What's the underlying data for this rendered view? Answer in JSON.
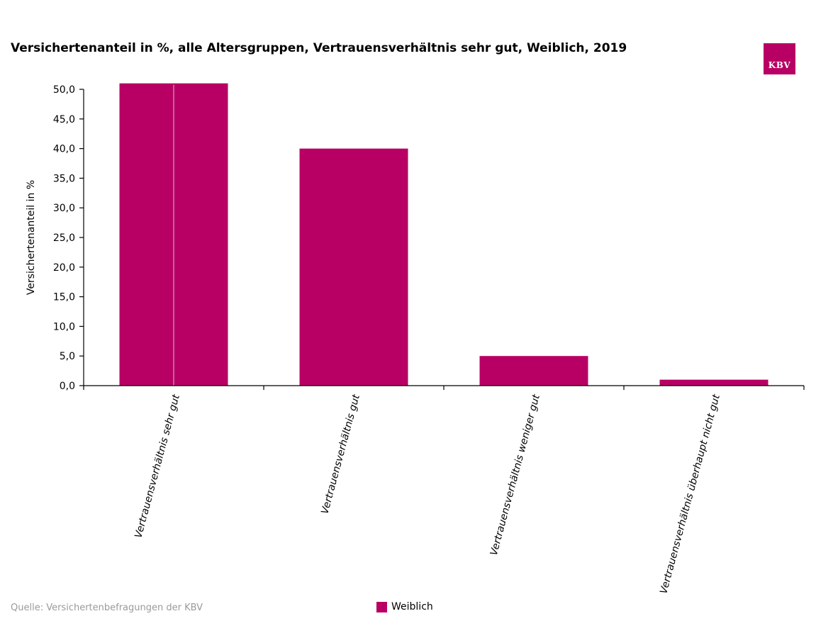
{
  "page": {
    "title": "Versichertenanteil in %, alle Altersgruppen, Vertrauensverhältnis sehr gut, Weiblich, 2019",
    "source": "Quelle: Versichertenbefragungen der KBV",
    "logo_text": "KBV"
  },
  "colors": {
    "bar": "#b80064",
    "axis": "#000000",
    "logo": "#b80064",
    "source_text": "#9a9a9a"
  },
  "chart_data": {
    "type": "bar",
    "title": "Versichertenanteil in %, alle Altersgruppen, Vertrauensverhältnis sehr gut, Weiblich, 2019",
    "xlabel": "",
    "ylabel": "Versichertenanteil in %",
    "ylim": [
      0,
      50
    ],
    "yticks": [
      "0,0",
      "5,0",
      "10,0",
      "15,0",
      "20,0",
      "25,0",
      "30,0",
      "35,0",
      "40,0",
      "45,0",
      "50,0"
    ],
    "categories": [
      "Vertrauensverhältnis sehr gut",
      "Vertrauensverhältnis gut",
      "Vertrauensverhältnis weniger gut",
      "Vertrauensverhältnis überhaupt nicht gut"
    ],
    "series": [
      {
        "name": "Weiblich",
        "values": [
          51.0,
          40.0,
          5.0,
          1.0
        ]
      }
    ],
    "grid": false,
    "legend": "bottom-center"
  }
}
